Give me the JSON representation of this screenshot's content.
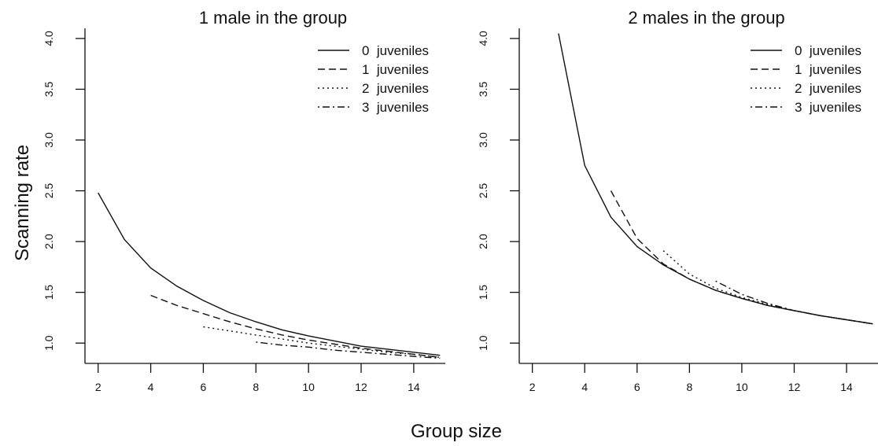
{
  "figure": {
    "ylabel": "Scanning rate",
    "xlabel": "Group size"
  },
  "chart_data": [
    {
      "type": "line",
      "title": "1 male in the group",
      "xlabel": "Group size",
      "ylabel": "Scanning rate",
      "xlim": [
        1.5,
        15.2
      ],
      "ylim": [
        0.8,
        4.1
      ],
      "xticks": [
        2,
        4,
        6,
        8,
        10,
        12,
        14
      ],
      "yticks": [
        1.0,
        1.5,
        2.0,
        2.5,
        3.0,
        3.5,
        4.0
      ],
      "ytick_labels": [
        "1.0",
        "1.5",
        "2.0",
        "2.5",
        "3.0",
        "3.5",
        "4.0"
      ],
      "legend_position": "top-right",
      "series": [
        {
          "name": "0  juveniles",
          "dash": "solid",
          "x": [
            2,
            3,
            4,
            5,
            6,
            7,
            8,
            9,
            10,
            11,
            12,
            13,
            14,
            15
          ],
          "y": [
            2.48,
            2.02,
            1.74,
            1.56,
            1.42,
            1.3,
            1.21,
            1.13,
            1.07,
            1.02,
            0.97,
            0.94,
            0.91,
            0.88
          ]
        },
        {
          "name": "1  juveniles",
          "dash": "dashed",
          "x": [
            4,
            5,
            6,
            7,
            8,
            9,
            10,
            11,
            12,
            13,
            14,
            15
          ],
          "y": [
            1.47,
            1.37,
            1.29,
            1.21,
            1.14,
            1.08,
            1.03,
            0.99,
            0.95,
            0.92,
            0.89,
            0.86
          ]
        },
        {
          "name": "2  juveniles",
          "dash": "dotted",
          "x": [
            6,
            7,
            8,
            9,
            10,
            11,
            12,
            13,
            14,
            15
          ],
          "y": [
            1.16,
            1.12,
            1.08,
            1.04,
            1.0,
            0.97,
            0.94,
            0.91,
            0.89,
            0.86
          ]
        },
        {
          "name": "3  juveniles",
          "dash": "dotdash",
          "x": [
            8,
            9,
            10,
            11,
            12,
            13,
            14,
            15
          ],
          "y": [
            1.01,
            0.98,
            0.96,
            0.93,
            0.91,
            0.89,
            0.87,
            0.85
          ]
        }
      ]
    },
    {
      "type": "line",
      "title": "2 males in the group",
      "xlabel": "Group size",
      "ylabel": "Scanning rate",
      "xlim": [
        1.5,
        15.2
      ],
      "ylim": [
        0.8,
        4.1
      ],
      "xticks": [
        2,
        4,
        6,
        8,
        10,
        12,
        14
      ],
      "yticks": [
        1.0,
        1.5,
        2.0,
        2.5,
        3.0,
        3.5,
        4.0
      ],
      "ytick_labels": [
        "1.0",
        "1.5",
        "2.0",
        "2.5",
        "3.0",
        "3.5",
        "4.0"
      ],
      "legend_position": "top-right",
      "series": [
        {
          "name": "0  juveniles",
          "dash": "solid",
          "x": [
            3,
            4,
            5,
            6,
            7,
            8,
            9,
            10,
            11,
            12,
            13,
            14,
            15
          ],
          "y": [
            4.05,
            2.75,
            2.24,
            1.95,
            1.77,
            1.63,
            1.52,
            1.44,
            1.37,
            1.32,
            1.27,
            1.23,
            1.19
          ]
        },
        {
          "name": "1  juveniles",
          "dash": "dashed",
          "x": [
            5,
            6,
            7,
            8,
            9,
            10,
            11,
            12,
            13,
            14,
            15
          ],
          "y": [
            2.5,
            2.03,
            1.78,
            1.63,
            1.52,
            1.44,
            1.37,
            1.32,
            1.27,
            1.23,
            1.19
          ]
        },
        {
          "name": "2  juveniles",
          "dash": "dotted",
          "x": [
            7,
            8,
            9,
            10,
            11,
            12,
            13,
            14,
            15
          ],
          "y": [
            1.91,
            1.68,
            1.54,
            1.45,
            1.38,
            1.32,
            1.27,
            1.23,
            1.19
          ]
        },
        {
          "name": "3  juveniles",
          "dash": "dotdash",
          "x": [
            9,
            10,
            11,
            12,
            13,
            14,
            15
          ],
          "y": [
            1.61,
            1.48,
            1.39,
            1.32,
            1.27,
            1.23,
            1.19
          ]
        }
      ]
    }
  ]
}
